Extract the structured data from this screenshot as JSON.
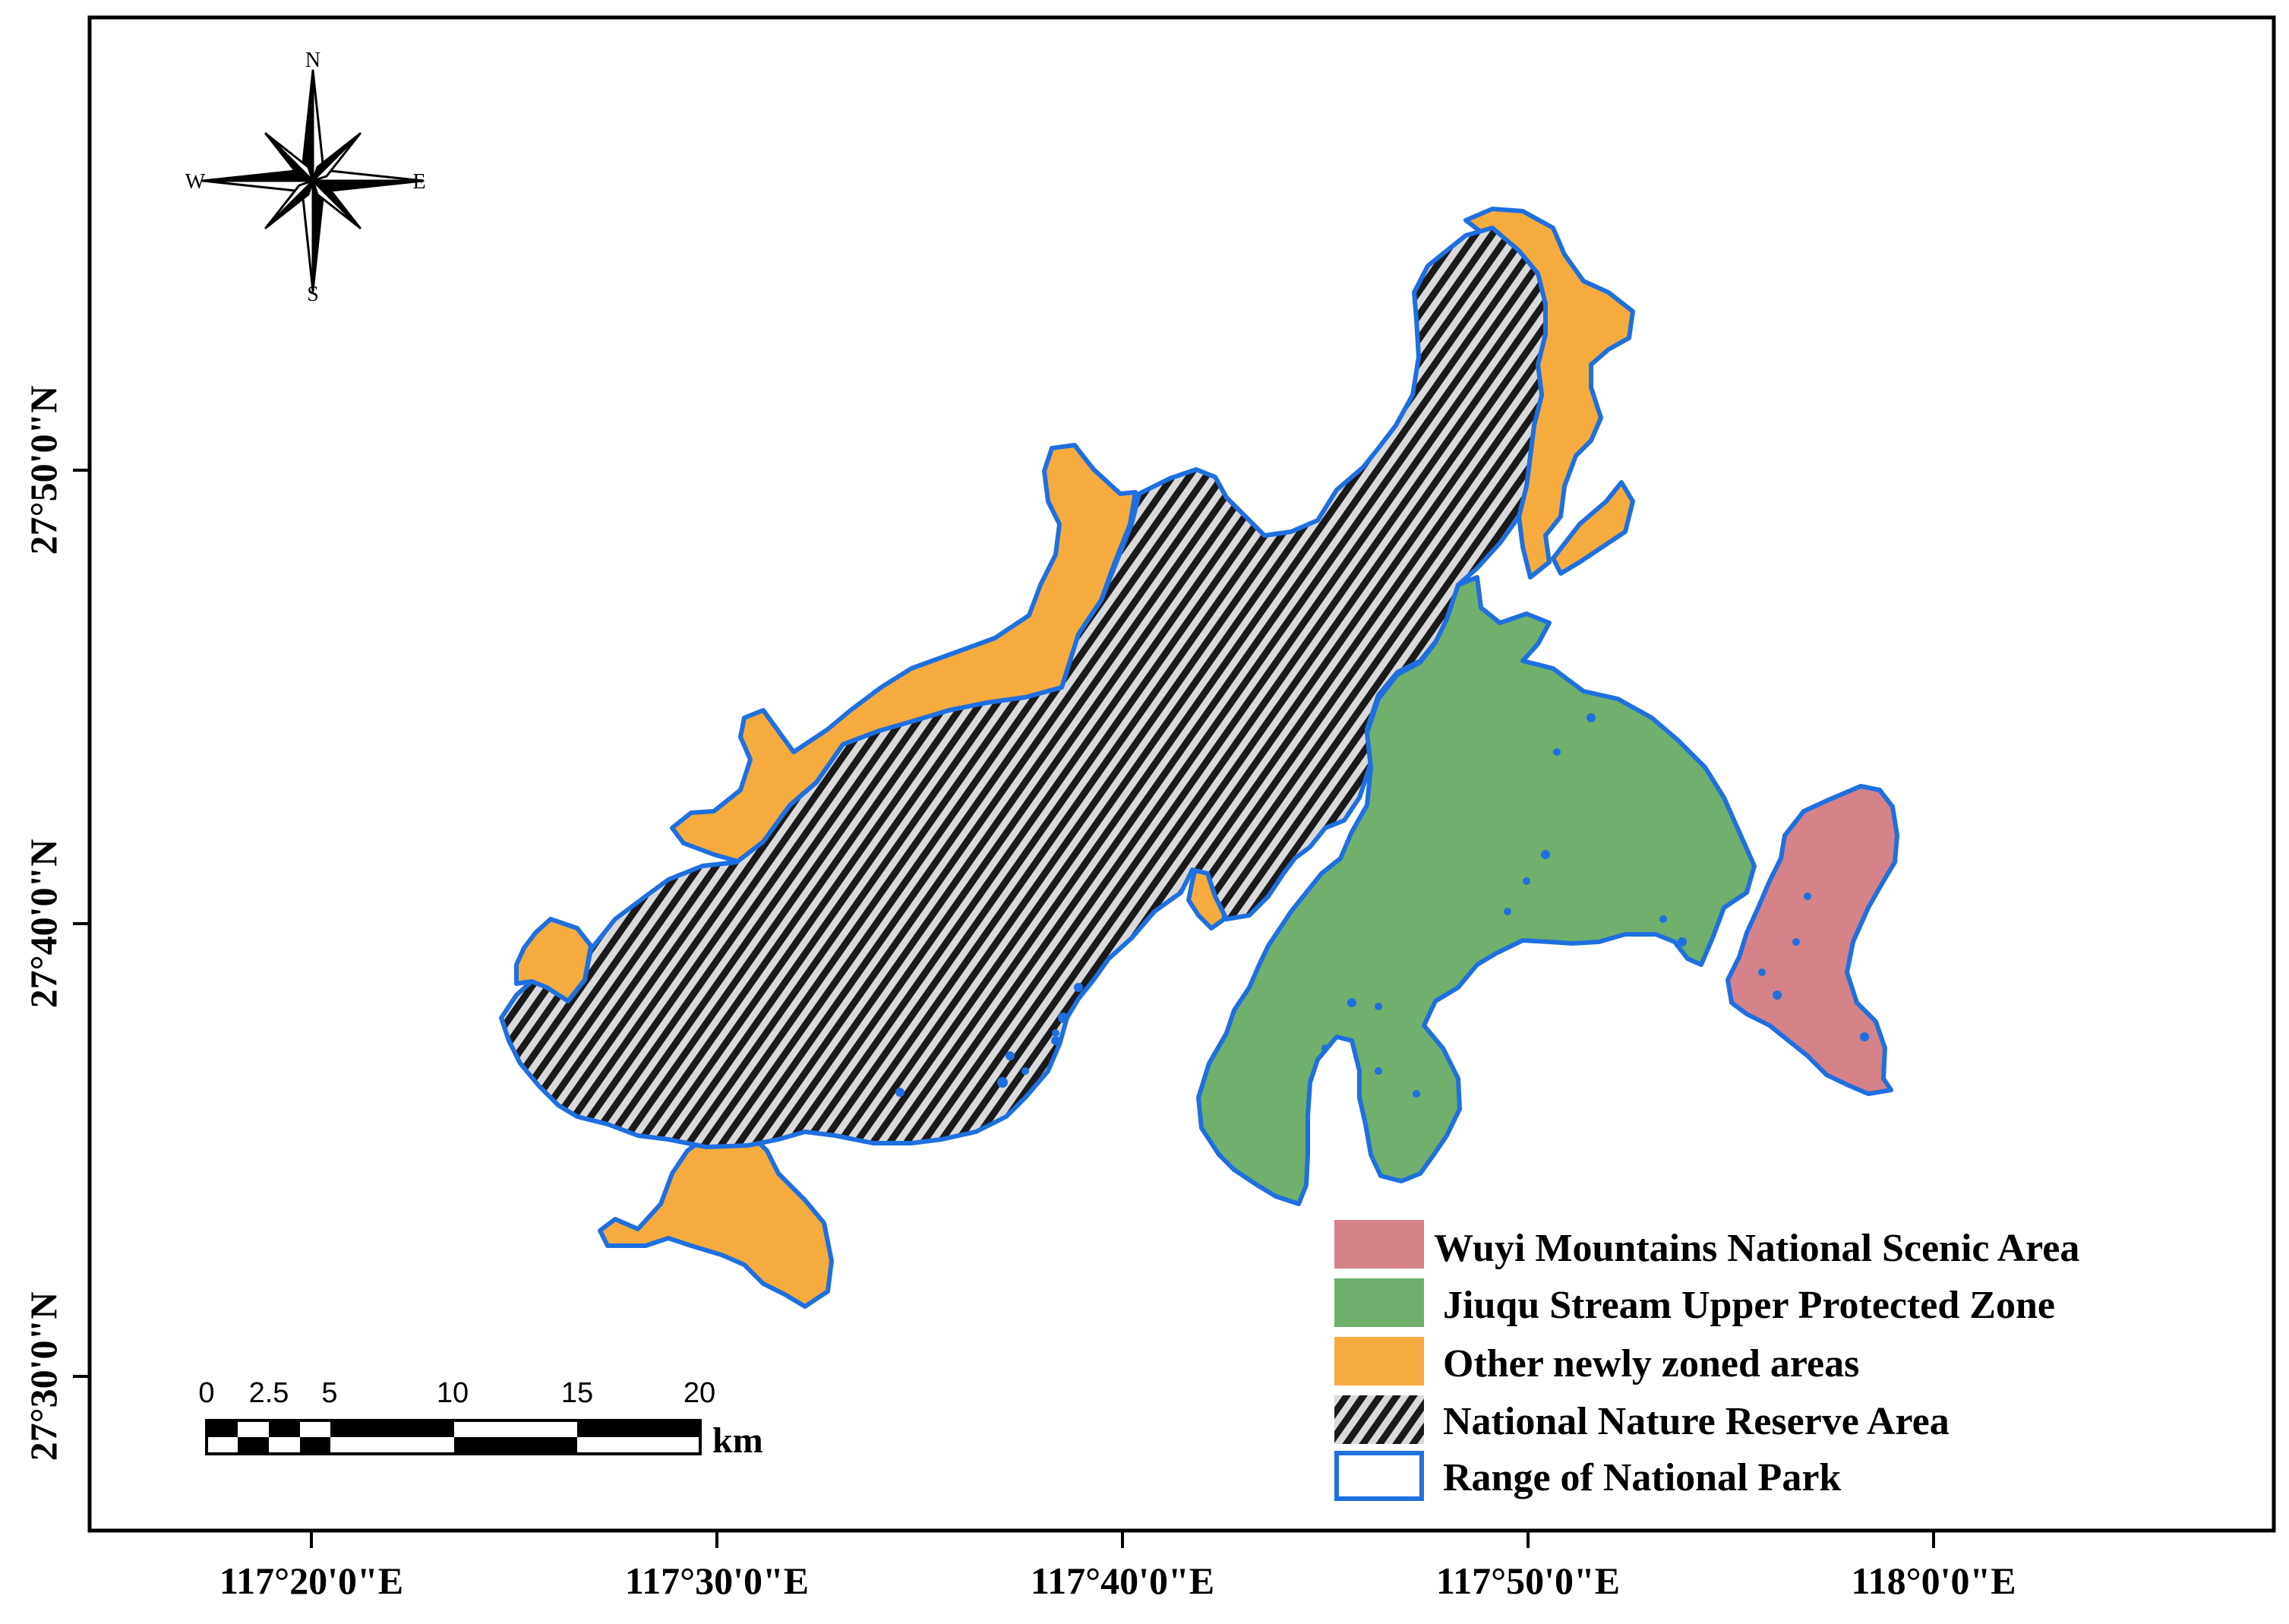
{
  "map": {
    "x_ticks": [
      "117°20'0\"E",
      "117°30'0\"E",
      "117°40'0\"E",
      "117°50'0\"E",
      "118°0'0\"E"
    ],
    "y_ticks": [
      "27°50'0\"N",
      "27°40'0\"N",
      "27°30'0\"N"
    ]
  },
  "compass": {
    "n": "N",
    "s": "S",
    "e": "E",
    "w": "W"
  },
  "scale_bar": {
    "labels": [
      "0",
      "2.5",
      "5",
      "10",
      "15",
      "20"
    ],
    "unit": "km"
  },
  "legend": {
    "items": [
      {
        "label": "Wuyi Mountains National Scenic Area",
        "color": "#d58288"
      },
      {
        "label": "Jiuqu Stream Upper Protected Zone",
        "color": "#6eb06c"
      },
      {
        "label": "Other newly zoned areas",
        "color": "#f6ab3f"
      },
      {
        "label": "National Nature Reserve Area",
        "color": "#1a1a1a"
      },
      {
        "label": "Range of National Park",
        "color": "#1e6fe0"
      }
    ]
  },
  "colors": {
    "scenic": "#d58288",
    "jiuqu": "#6eb06c",
    "other": "#f6ab3f",
    "reserve_hatch": "#1a1a1a",
    "park_outline": "#1e6fe0"
  }
}
